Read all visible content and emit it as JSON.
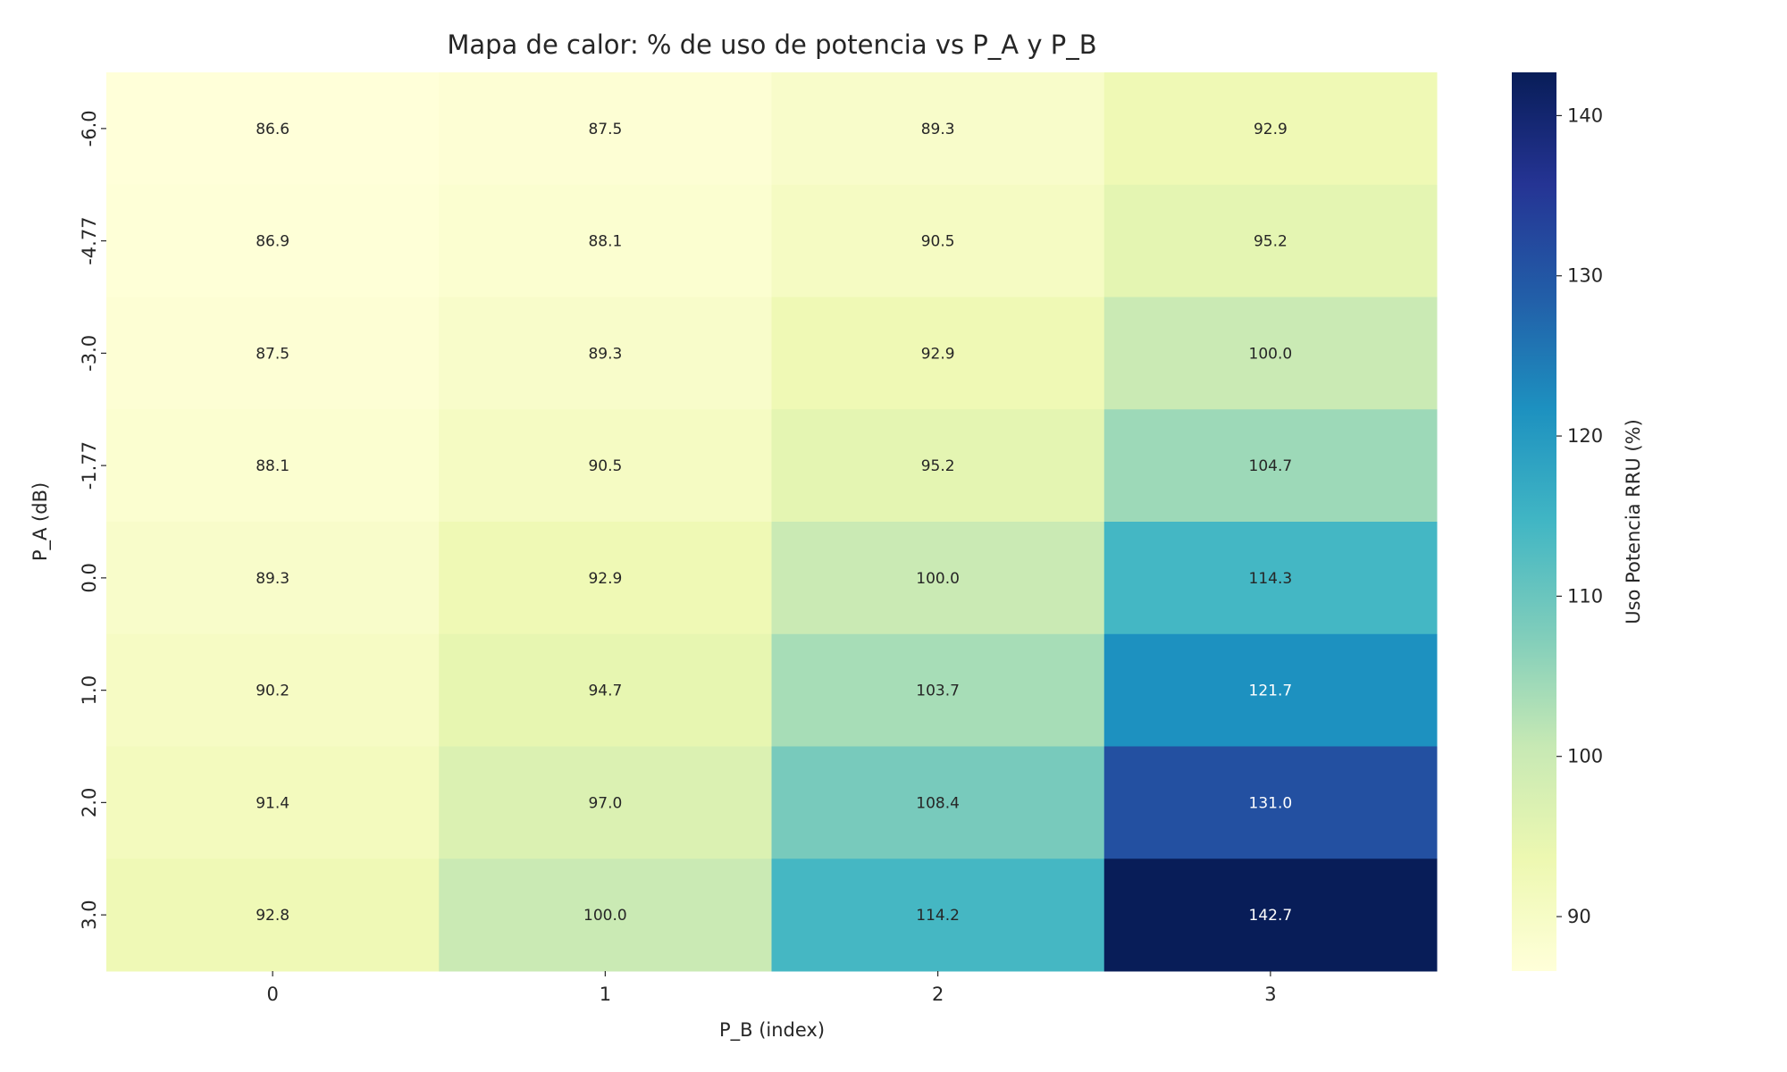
{
  "chart_data": {
    "type": "heatmap",
    "title": "Mapa de calor: % de uso de potencia vs P_A y P_B",
    "xlabel": "P_B (index)",
    "ylabel": "P_A (dB)",
    "x_categories": [
      "0",
      "1",
      "2",
      "3"
    ],
    "y_categories": [
      "-6.0",
      "-4.77",
      "-3.0",
      "-1.77",
      "0.0",
      "1.0",
      "2.0",
      "3.0"
    ],
    "values": [
      [
        86.6,
        87.5,
        89.3,
        92.9
      ],
      [
        86.9,
        88.1,
        90.5,
        95.2
      ],
      [
        87.5,
        89.3,
        92.9,
        100.0
      ],
      [
        88.1,
        90.5,
        95.2,
        104.7
      ],
      [
        89.3,
        92.9,
        100.0,
        114.3
      ],
      [
        90.2,
        94.7,
        103.7,
        121.7
      ],
      [
        91.4,
        97.0,
        108.4,
        131.0
      ],
      [
        92.8,
        100.0,
        114.2,
        142.7
      ]
    ],
    "colormap": "YlGnBu",
    "vmin": 86.6,
    "vmax": 142.7,
    "colorbar": {
      "label": "Uso Potencia RRU (%)",
      "ticks": [
        "90",
        "100",
        "110",
        "120",
        "130",
        "140"
      ]
    },
    "annotation_format": "0.1f"
  }
}
